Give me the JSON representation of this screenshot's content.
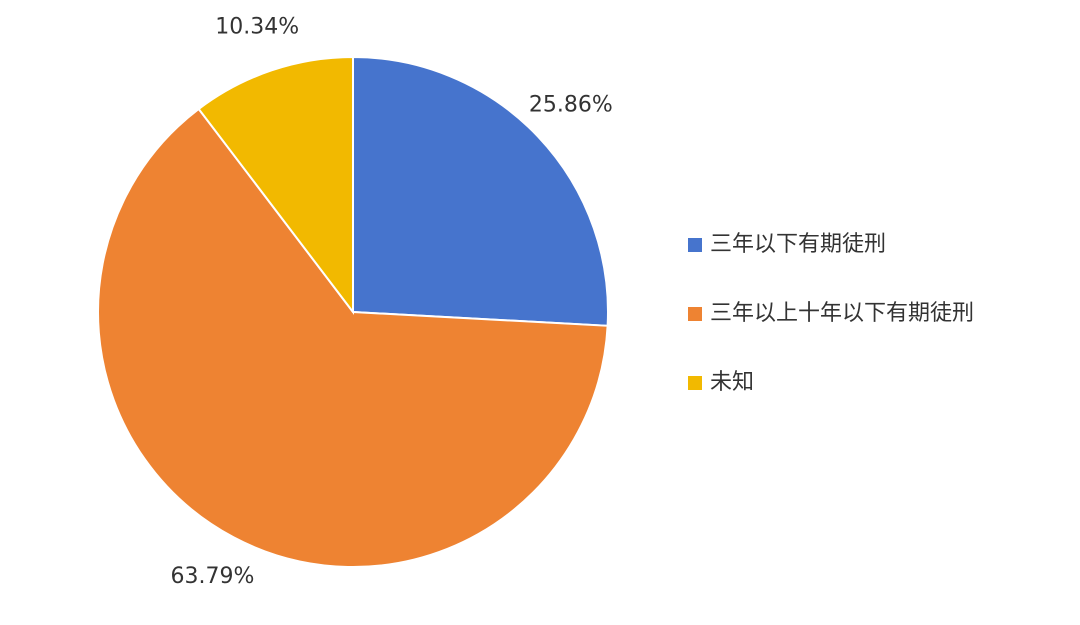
{
  "chart_data": {
    "type": "pie",
    "categories": [
      "三年以下有期徒刑",
      "三年以上十年以下有期徒刑",
      "未知"
    ],
    "values": [
      25.86,
      63.79,
      10.34
    ],
    "value_labels": [
      "25.86%",
      "63.79%",
      "10.34%"
    ],
    "colors": [
      "#4674cd",
      "#ee8332",
      "#f2b900"
    ],
    "legend": "right"
  }
}
